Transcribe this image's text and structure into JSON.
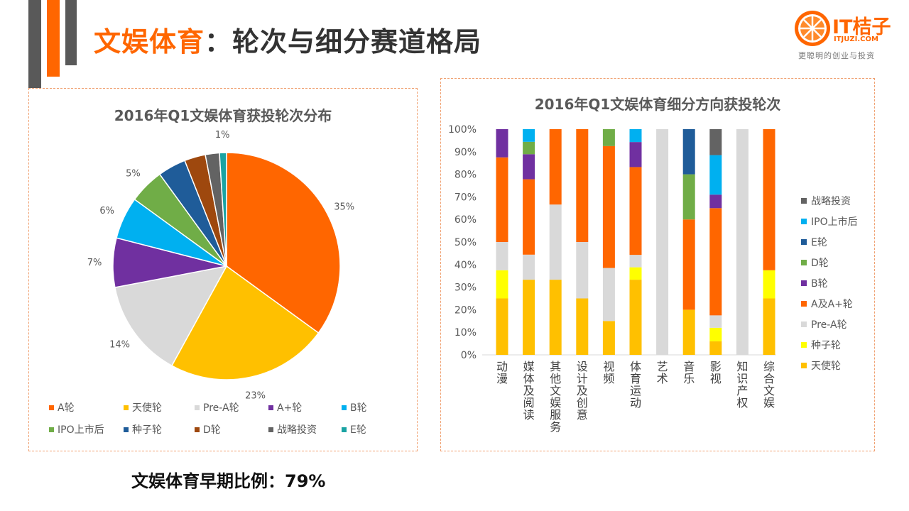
{
  "header": {
    "title_part1": "文娱体育",
    "title_part2": "：轮次与细分赛道格局"
  },
  "logo": {
    "name": "IT桔子",
    "site": "ITJUZI.COM",
    "tagline": "更聪明的创业与投资"
  },
  "footer": {
    "note": "文娱体育早期比例：79%"
  },
  "colors": {
    "accent": "#FF6600",
    "dark_bar": "#595959",
    "panel_border": "#F0A070"
  },
  "chart_data": [
    {
      "type": "pie",
      "title": "2016年Q1文娱体育获投轮次分布",
      "legend_position": "bottom",
      "slices": [
        {
          "label": "A轮",
          "value": 35,
          "display": "35%",
          "color": "#FF6600"
        },
        {
          "label": "天使轮",
          "value": 23,
          "display": "23%",
          "color": "#FFC000"
        },
        {
          "label": "Pre-A轮",
          "value": 14,
          "display": "14%",
          "color": "#D9D9D9"
        },
        {
          "label": "A+轮",
          "value": 7,
          "display": "7%",
          "color": "#7030A0"
        },
        {
          "label": "B轮",
          "value": 6,
          "display": "6%",
          "color": "#00B0F0"
        },
        {
          "label": "IPO上市后",
          "value": 5,
          "display": "5%",
          "color": "#70AD47"
        },
        {
          "label": "种子轮",
          "value": 4,
          "display": "",
          "color": "#1F5C99"
        },
        {
          "label": "D轮",
          "value": 3,
          "display": "",
          "color": "#9E480E"
        },
        {
          "label": "战略投资",
          "value": 2,
          "display": "",
          "color": "#636363"
        },
        {
          "label": "E轮",
          "value": 1,
          "display": "1%",
          "color": "#1AA3A3"
        }
      ]
    },
    {
      "type": "bar",
      "stacked": "percent",
      "title": "2016年Q1文娱体育细分方向获投轮次",
      "ylim": [
        0,
        100
      ],
      "yticks": [
        "0%",
        "10%",
        "20%",
        "30%",
        "40%",
        "50%",
        "60%",
        "70%",
        "80%",
        "90%",
        "100%"
      ],
      "legend_position": "right",
      "categories": [
        "动漫",
        "媒体及阅读",
        "其他文娱服务",
        "设计及创意",
        "视频",
        "体育运动",
        "艺术",
        "音乐",
        "影视",
        "知识产权",
        "综合文娱"
      ],
      "series": [
        {
          "name": "天使轮",
          "color": "#FFC000",
          "values": [
            25,
            33.3,
            33.3,
            25,
            15,
            33.3,
            0,
            20,
            6,
            0,
            25
          ]
        },
        {
          "name": "种子轮",
          "color": "#FFFF00",
          "values": [
            12.5,
            0,
            0,
            0,
            0,
            5.5,
            0,
            0,
            6,
            0,
            12.5
          ]
        },
        {
          "name": "Pre-A轮",
          "color": "#D9D9D9",
          "values": [
            12.5,
            11.1,
            33.3,
            25,
            23.5,
            5.5,
            100,
            0,
            5.5,
            100,
            0
          ]
        },
        {
          "name": "A及A+轮",
          "color": "#FF6600",
          "values": [
            37.5,
            33.4,
            33.4,
            50,
            54,
            38.9,
            0,
            40,
            47.5,
            0,
            62.5
          ]
        },
        {
          "name": "B轮",
          "color": "#7030A0",
          "values": [
            12.5,
            11.1,
            0,
            0,
            0,
            11.1,
            0,
            0,
            6,
            0,
            0
          ]
        },
        {
          "name": "D轮",
          "color": "#70AD47",
          "values": [
            0,
            5.5,
            0,
            0,
            7.5,
            0,
            0,
            20,
            0,
            0,
            0
          ]
        },
        {
          "name": "E轮",
          "color": "#1F5C99",
          "values": [
            0,
            0,
            0,
            0,
            0,
            0,
            0,
            20,
            0,
            0,
            0
          ]
        },
        {
          "name": "IPO上市后",
          "color": "#00B0F0",
          "values": [
            0,
            5.6,
            0,
            0,
            0,
            5.7,
            0,
            0,
            17.5,
            0,
            0
          ]
        },
        {
          "name": "战略投资",
          "color": "#636363",
          "values": [
            0,
            0,
            0,
            0,
            0,
            0,
            0,
            0,
            11.5,
            0,
            0
          ]
        }
      ],
      "legend_order": [
        "战略投资",
        "IPO上市后",
        "E轮",
        "D轮",
        "B轮",
        "A及A+轮",
        "Pre-A轮",
        "种子轮",
        "天使轮"
      ]
    }
  ]
}
